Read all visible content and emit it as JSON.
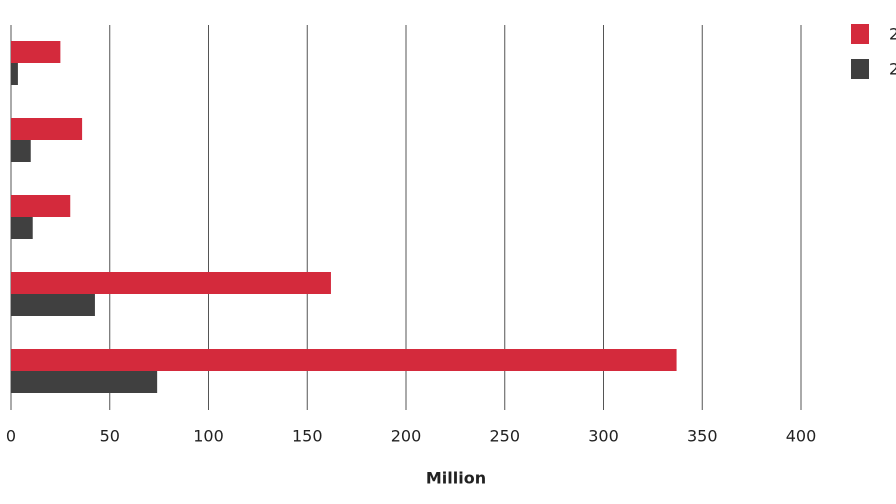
{
  "chart_data": {
    "type": "hbar",
    "x_label": "Million",
    "categories": [
      null,
      null,
      null,
      null,
      null
    ],
    "series": [
      {
        "name": "2",
        "color": "#d42a3c",
        "values": [
          25,
          36,
          30,
          162,
          337
        ]
      },
      {
        "name": "2",
        "color": "#404040",
        "values": [
          3.5,
          10,
          11,
          42.5,
          74
        ]
      }
    ],
    "xlim": [
      0,
      400
    ],
    "xticks": [
      0,
      50,
      100,
      150,
      200,
      250,
      300,
      350,
      400
    ],
    "grid": true
  }
}
